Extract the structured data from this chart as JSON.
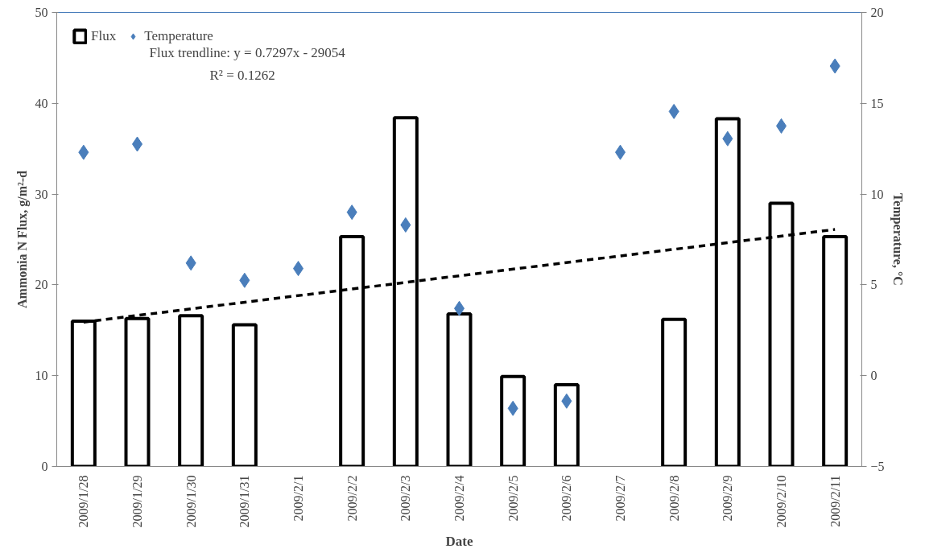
{
  "chart_data": {
    "type": "bar",
    "xlabel": "Date",
    "ylabel": "Ammonia N Flux, g/m²-d",
    "y2label": "Temperature, °C",
    "categories": [
      "2009/1/28",
      "2009/1/29",
      "2009/1/30",
      "2009/1/31",
      "2009/2/1",
      "2009/2/2",
      "2009/2/3",
      "2009/2/4",
      "2009/2/5",
      "2009/2/6",
      "2009/2/7",
      "2009/2/8",
      "2009/2/9",
      "2009/2/10",
      "2009/2/11"
    ],
    "series": [
      {
        "name": "Flux",
        "color": "#000000",
        "values": [
          16.0,
          16.3,
          16.6,
          15.6,
          null,
          25.3,
          38.4,
          16.8,
          9.9,
          9.0,
          null,
          16.2,
          38.3,
          29.0,
          25.3
        ]
      },
      {
        "name": "Temperature",
        "type": "scatter",
        "axis": "y2",
        "marker": "diamond",
        "color": "#4a7ebb",
        "values": [
          12.3,
          12.75,
          6.2,
          5.25,
          5.9,
          9.0,
          8.3,
          3.7,
          -1.8,
          -1.4,
          12.3,
          14.55,
          13.05,
          13.75,
          17.05
        ]
      },
      {
        "type": "line",
        "line_style": "dashed",
        "color": "#000000",
        "x": [
          "2009/1/28",
          "2009/2/11"
        ],
        "values": [
          15.9,
          26.1
        ]
      }
    ],
    "ylim": [
      0,
      50
    ],
    "yticks": [
      0,
      10,
      20,
      30,
      40,
      50
    ],
    "y2lim": [
      -5,
      20
    ],
    "y2ticks": [
      -5,
      0,
      5,
      10,
      15,
      20
    ],
    "annotations": [
      "Flux trendline: y = 0.7297x - 29054",
      "R² = 0.1262"
    ],
    "legend": "top left",
    "grid": false
  }
}
